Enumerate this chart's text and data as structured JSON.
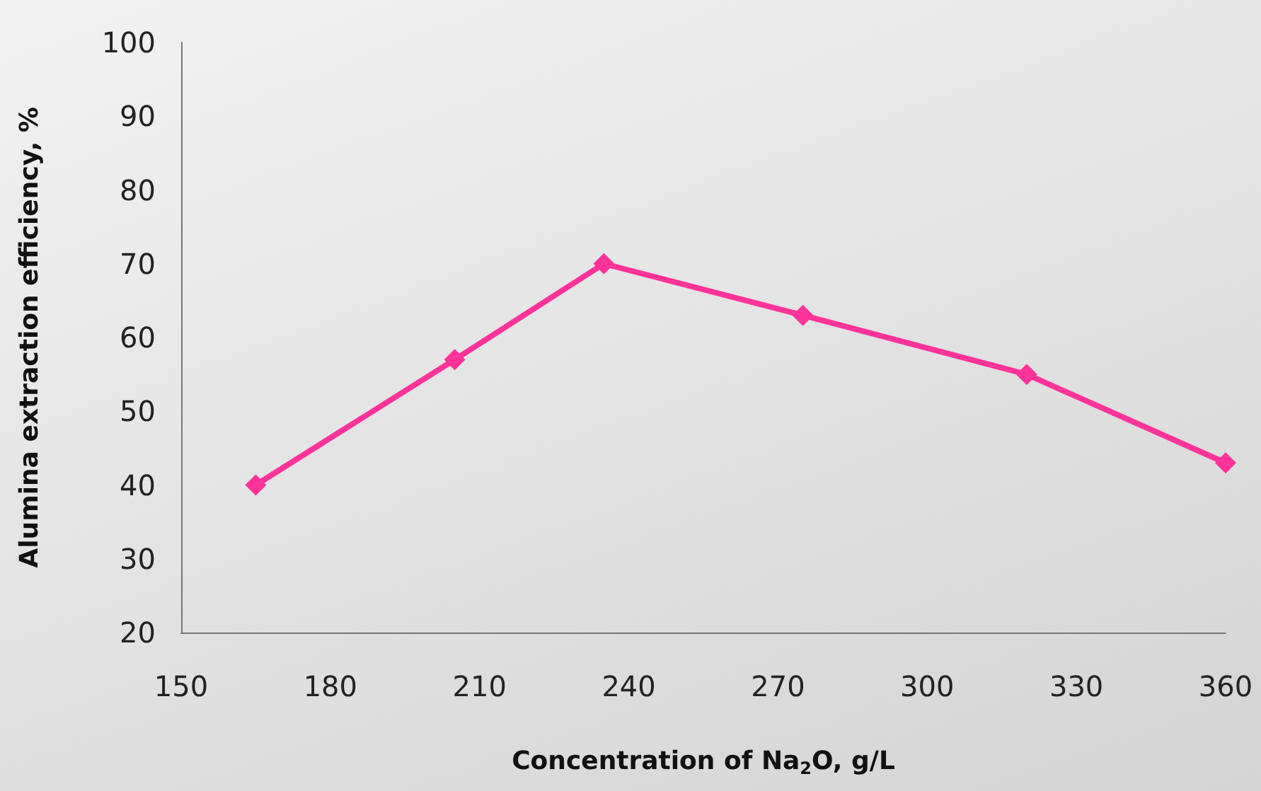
{
  "chart_data": {
    "type": "line",
    "xlabel": "Concentration of Na$_{2}$O, g/L",
    "ylabel": "Alumina extraction efficiency, %",
    "x": [
      165,
      205,
      235,
      275,
      320,
      360
    ],
    "series": [
      {
        "color": "#ff3399",
        "values": [
          40,
          57,
          70,
          63,
          55,
          43
        ]
      }
    ],
    "xlim": [
      150,
      360
    ],
    "xticks": [
      150,
      180,
      210,
      240,
      270,
      300,
      330,
      360
    ],
    "ylim": [
      20,
      100
    ],
    "yticks": [
      20,
      30,
      40,
      50,
      60,
      70,
      80,
      90,
      100
    ],
    "marker": "diamond",
    "line_style": "solid"
  }
}
